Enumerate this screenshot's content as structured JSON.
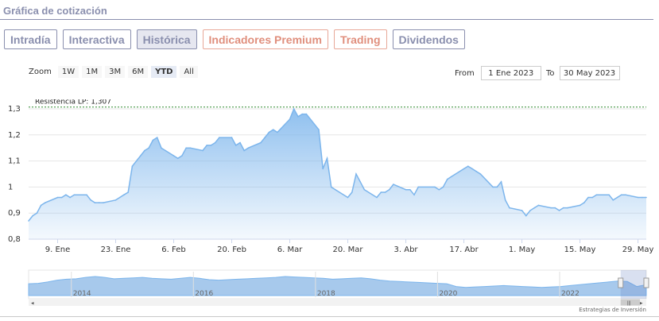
{
  "section_title": "Gráfica de cotización",
  "tabs": [
    {
      "label": "Intradía",
      "premium": false,
      "active": false
    },
    {
      "label": "Interactiva",
      "premium": false,
      "active": false
    },
    {
      "label": "Histórica",
      "premium": false,
      "active": true
    },
    {
      "label": "Indicadores Premium",
      "premium": true,
      "active": false
    },
    {
      "label": "Trading",
      "premium": true,
      "active": false
    },
    {
      "label": "Dividendos",
      "premium": false,
      "active": false
    }
  ],
  "zoom": {
    "label": "Zoom",
    "buttons": [
      {
        "label": "1W",
        "active": false
      },
      {
        "label": "1M",
        "active": false
      },
      {
        "label": "3M",
        "active": false
      },
      {
        "label": "6M",
        "active": false
      },
      {
        "label": "YTD",
        "active": true
      },
      {
        "label": "All",
        "active": false
      }
    ]
  },
  "range": {
    "from_label": "From",
    "from_value": "1 Ene 2023",
    "to_label": "To",
    "to_value": "30 May 2023"
  },
  "watermark": "Estrategias de Inversión",
  "colors": {
    "accent": "#8a8fae",
    "premium": "#e08f7d",
    "line": "#7cb5ec",
    "resistance": "#2e8b2e"
  },
  "chart_data": {
    "type": "area",
    "ylim": [
      0.8,
      1.3
    ],
    "yticks": [
      "0,8",
      "0,9",
      "1",
      "1,1",
      "1,2",
      "1,3"
    ],
    "ytick_values": [
      0.8,
      0.9,
      1.0,
      1.1,
      1.2,
      1.3
    ],
    "x_domain": [
      "2023-01-02",
      "2023-05-31"
    ],
    "xticks": [
      {
        "date": "2023-01-09",
        "label": "9. Ene"
      },
      {
        "date": "2023-01-23",
        "label": "23. Ene"
      },
      {
        "date": "2023-02-06",
        "label": "6. Feb"
      },
      {
        "date": "2023-02-20",
        "label": "20. Feb"
      },
      {
        "date": "2023-03-06",
        "label": "6. Mar"
      },
      {
        "date": "2023-03-20",
        "label": "20. Mar"
      },
      {
        "date": "2023-04-03",
        "label": "3. Abr"
      },
      {
        "date": "2023-04-17",
        "label": "17. Abr"
      },
      {
        "date": "2023-05-01",
        "label": "1. May"
      },
      {
        "date": "2023-05-15",
        "label": "15. May"
      },
      {
        "date": "2023-05-29",
        "label": "29. May"
      }
    ],
    "resistance": {
      "label": "Resistencia LP: 1,307",
      "value": 1.307
    },
    "series": [
      {
        "x": [
          "2023-01-02",
          "2023-01-03",
          "2023-01-04",
          "2023-01-05",
          "2023-01-06",
          "2023-01-09",
          "2023-01-10",
          "2023-01-11",
          "2023-01-12",
          "2023-01-13",
          "2023-01-16",
          "2023-01-17",
          "2023-01-18",
          "2023-01-19",
          "2023-01-20",
          "2023-01-23",
          "2023-01-24",
          "2023-01-25",
          "2023-01-26",
          "2023-01-27",
          "2023-01-30",
          "2023-01-31",
          "2023-02-01",
          "2023-02-02",
          "2023-02-03",
          "2023-02-06",
          "2023-02-07",
          "2023-02-08",
          "2023-02-09",
          "2023-02-10",
          "2023-02-13",
          "2023-02-14",
          "2023-02-15",
          "2023-02-16",
          "2023-02-17",
          "2023-02-20",
          "2023-02-21",
          "2023-02-22",
          "2023-02-23",
          "2023-02-24",
          "2023-02-27",
          "2023-02-28",
          "2023-03-01",
          "2023-03-02",
          "2023-03-03",
          "2023-03-06",
          "2023-03-07",
          "2023-03-08",
          "2023-03-09",
          "2023-03-10",
          "2023-03-13",
          "2023-03-14",
          "2023-03-15",
          "2023-03-16",
          "2023-03-17",
          "2023-03-20",
          "2023-03-21",
          "2023-03-22",
          "2023-03-23",
          "2023-03-24",
          "2023-03-27",
          "2023-03-28",
          "2023-03-29",
          "2023-03-30",
          "2023-03-31",
          "2023-04-03",
          "2023-04-04",
          "2023-04-05",
          "2023-04-06",
          "2023-04-10",
          "2023-04-11",
          "2023-04-12",
          "2023-04-13",
          "2023-04-14",
          "2023-04-17",
          "2023-04-18",
          "2023-04-19",
          "2023-04-20",
          "2023-04-21",
          "2023-04-24",
          "2023-04-25",
          "2023-04-26",
          "2023-04-27",
          "2023-04-28",
          "2023-05-01",
          "2023-05-02",
          "2023-05-03",
          "2023-05-04",
          "2023-05-05",
          "2023-05-08",
          "2023-05-09",
          "2023-05-10",
          "2023-05-11",
          "2023-05-12",
          "2023-05-15",
          "2023-05-16",
          "2023-05-17",
          "2023-05-18",
          "2023-05-19",
          "2023-05-22",
          "2023-05-23",
          "2023-05-24",
          "2023-05-25",
          "2023-05-26",
          "2023-05-29",
          "2023-05-30",
          "2023-05-31"
        ],
        "values": [
          0.87,
          0.89,
          0.9,
          0.93,
          0.94,
          0.96,
          0.96,
          0.97,
          0.96,
          0.97,
          0.97,
          0.95,
          0.94,
          0.94,
          0.94,
          0.95,
          0.96,
          0.97,
          0.98,
          1.08,
          1.14,
          1.15,
          1.18,
          1.19,
          1.15,
          1.12,
          1.11,
          1.12,
          1.15,
          1.15,
          1.14,
          1.16,
          1.16,
          1.17,
          1.19,
          1.19,
          1.16,
          1.17,
          1.14,
          1.15,
          1.17,
          1.19,
          1.21,
          1.22,
          1.21,
          1.26,
          1.3,
          1.27,
          1.28,
          1.28,
          1.22,
          1.07,
          1.11,
          1.0,
          0.99,
          0.96,
          0.98,
          1.05,
          1.02,
          0.99,
          0.96,
          0.98,
          0.98,
          0.99,
          1.01,
          0.99,
          0.99,
          0.97,
          1.0,
          1.0,
          0.99,
          1.0,
          1.03,
          1.04,
          1.07,
          1.08,
          1.07,
          1.06,
          1.05,
          1.0,
          1.0,
          1.02,
          0.95,
          0.92,
          0.91,
          0.89,
          0.91,
          0.92,
          0.93,
          0.92,
          0.92,
          0.91,
          0.92,
          0.92,
          0.93,
          0.94,
          0.96,
          0.96,
          0.97,
          0.97,
          0.95,
          0.96,
          0.97,
          0.97,
          0.96,
          0.96,
          0.96
        ]
      }
    ],
    "navigator": {
      "x_domain": [
        2013.3,
        2023.42
      ],
      "year_labels": [
        "2014",
        "2016",
        "2018",
        "2020",
        "2022"
      ],
      "year_values": [
        2014,
        2016,
        2018,
        2020,
        2022
      ],
      "selected_range": [
        2023.0,
        2023.42
      ],
      "values": [
        1.3,
        1.35,
        1.5,
        1.7,
        1.8,
        1.85,
        2.0,
        2.1,
        2.0,
        1.85,
        1.9,
        1.95,
        2.0,
        1.9,
        1.85,
        1.8,
        1.9,
        2.0,
        1.9,
        1.75,
        1.7,
        1.75,
        1.8,
        1.85,
        1.9,
        1.95,
        2.0,
        2.1,
        2.05,
        2.0,
        1.95,
        1.9,
        1.8,
        1.85,
        1.9,
        1.95,
        1.85,
        1.7,
        1.6,
        1.55,
        1.5,
        1.45,
        1.4,
        1.35,
        1.3,
        1.0,
        0.9,
        0.95,
        1.0,
        1.05,
        1.1,
        1.05,
        1.0,
        0.95,
        0.9,
        0.95,
        1.0,
        1.1,
        1.2,
        1.3,
        1.4,
        1.5,
        1.6,
        1.55,
        1.0,
        1.2
      ]
    }
  }
}
